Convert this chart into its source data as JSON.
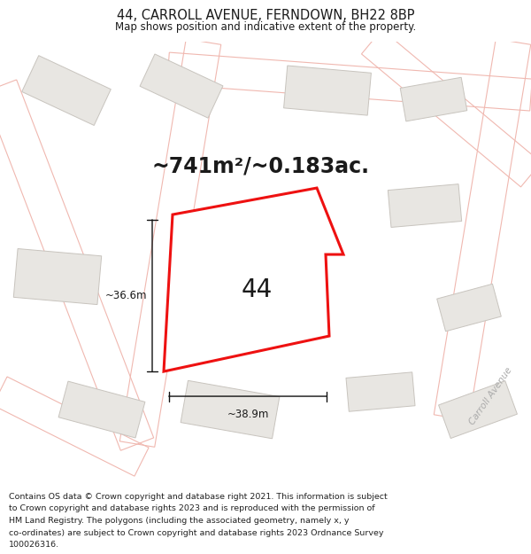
{
  "title": "44, CARROLL AVENUE, FERNDOWN, BH22 8BP",
  "subtitle": "Map shows position and indicative extent of the property.",
  "area_text": "~741m²/~0.183ac.",
  "property_number": "44",
  "dim_width": "~38.9m",
  "dim_height": "~36.6m",
  "footer_lines": [
    "Contains OS data © Crown copyright and database right 2021. This information is subject",
    "to Crown copyright and database rights 2023 and is reproduced with the permission of",
    "HM Land Registry. The polygons (including the associated geometry, namely x, y",
    "co-ordinates) are subject to Crown copyright and database rights 2023 Ordnance Survey",
    "100026316."
  ],
  "bg_color": "#f7f5f2",
  "road_color": "#f0b8b0",
  "road_lw": 1.0,
  "building_fill": "#e8e6e2",
  "building_outline": "#c8c4be",
  "highlight_color": "#ee1111",
  "text_color": "#1a1a1a",
  "footer_color": "#222222",
  "title_fontsize": 10.5,
  "subtitle_fontsize": 8.5,
  "area_fontsize": 17,
  "number_fontsize": 20,
  "road_label_color": "#aaaaaa",
  "road_label_size": 7.5,
  "footer_fontsize": 6.8,
  "dim_label_size": 8.5
}
